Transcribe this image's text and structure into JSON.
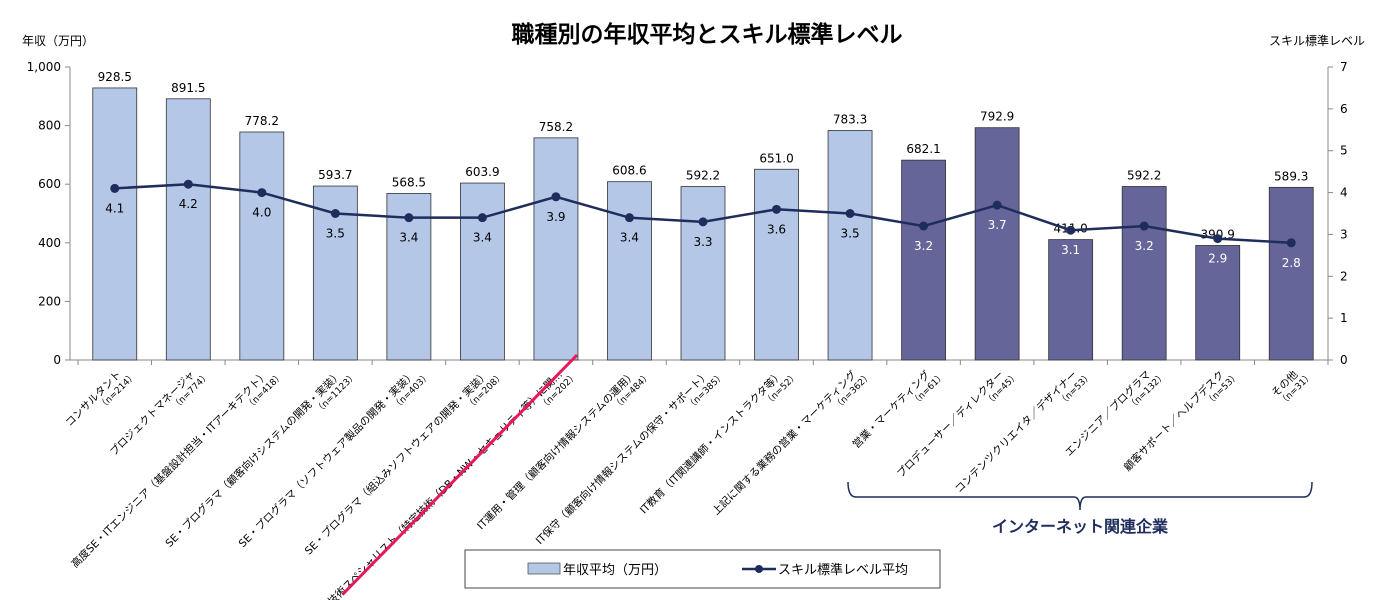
{
  "chart_data": {
    "type": "bar+line",
    "title": "職種別の年収平均とスキル標準レベル",
    "ylabel_left": "年収（万円）",
    "ylabel_right": "スキル標準レベル",
    "ylim_left": [
      0,
      1000
    ],
    "yticks_left": [
      "0",
      "200",
      "400",
      "600",
      "800",
      "1,000"
    ],
    "ylim_right": [
      0,
      7
    ],
    "yticks_right": [
      "0",
      "1",
      "2",
      "3",
      "4",
      "5",
      "6",
      "7"
    ],
    "grid": false,
    "legend_placement": "bottom",
    "colors": {
      "bar_standard": "#b4c7e7",
      "bar_internet": "#65659a",
      "line": "#1f2d5c",
      "annotation": "#e8185a"
    },
    "categories": [
      {
        "label": "コンサルタント",
        "n": "（n=214）",
        "group": "standard"
      },
      {
        "label": "プロジェクトマネージャ",
        "n": "（n=774）",
        "group": "standard"
      },
      {
        "label": "高度SE・ITエンジニア（基盤設計担当・ITアーキテクト）",
        "n": "（n=418）",
        "group": "standard"
      },
      {
        "label": "SE・プログラマ（顧客向けシステムの開発・実装）",
        "n": "（n=1123）",
        "group": "standard"
      },
      {
        "label": "SE・プログラマ（ソフトウェア製品の開発・実装）",
        "n": "（n=403）",
        "group": "standard"
      },
      {
        "label": "SE・プログラマ（組込みソフトウェアの開発・実装）",
        "n": "（n=208）",
        "group": "standard"
      },
      {
        "label": "IT技術スペシャリスト（特定技術（DB・NW・セキュリティ等）に関…",
        "n": "（n=202）",
        "group": "standard"
      },
      {
        "label": "IT運用・管理（顧客向け情報システムの運用）",
        "n": "（n=484）",
        "group": "standard"
      },
      {
        "label": "IT保守（顧客向け情報システムの保守・サポート）",
        "n": "（n=385）",
        "group": "standard"
      },
      {
        "label": "IT教育（IT関連講師・インストラクタ等）",
        "n": "（n=52）",
        "group": "standard"
      },
      {
        "label": "上記に関する業務の営業・マーケティング",
        "n": "（n=362）",
        "group": "standard"
      },
      {
        "label": "営業・マーケティング",
        "n": "（n=61）",
        "group": "internet"
      },
      {
        "label": "プロデューサー／ディレクター",
        "n": "（n=45）",
        "group": "internet"
      },
      {
        "label": "コンテンツクリエイタ／デザイナー",
        "n": "（n=53）",
        "group": "internet"
      },
      {
        "label": "エンジニア／プログラマ",
        "n": "（n=132）",
        "group": "internet"
      },
      {
        "label": "顧客サポート／ヘルプデスク",
        "n": "（n=53）",
        "group": "internet"
      },
      {
        "label": "その他",
        "n": "（n=31）",
        "group": "internet"
      }
    ],
    "series": [
      {
        "name": "年収平均（万円）",
        "type": "bar",
        "axis": "left",
        "values": [
          928.5,
          891.5,
          778.2,
          593.7,
          568.5,
          603.9,
          758.2,
          608.6,
          592.2,
          651.0,
          783.3,
          682.1,
          792.9,
          411.0,
          592.2,
          390.9,
          589.3
        ],
        "labels": [
          "928.5",
          "891.5",
          "778.2",
          "593.7",
          "568.5",
          "603.9",
          "758.2",
          "608.6",
          "592.2",
          "651.0",
          "783.3",
          "682.1",
          "792.9",
          "411.0",
          "592.2",
          "390.9",
          "589.3"
        ]
      },
      {
        "name": "スキル標準レベル平均",
        "type": "line",
        "axis": "right",
        "values": [
          4.1,
          4.2,
          4.0,
          3.5,
          3.4,
          3.4,
          3.9,
          3.4,
          3.3,
          3.6,
          3.5,
          3.2,
          3.7,
          3.1,
          3.2,
          2.9,
          2.8
        ],
        "labels": [
          "4.1",
          "4.2",
          "4.0",
          "3.5",
          "3.4",
          "3.4",
          "3.9",
          "3.4",
          "3.3",
          "3.6",
          "3.5",
          "3.2",
          "3.7",
          "3.1",
          "3.2",
          "2.9",
          "2.8"
        ]
      }
    ],
    "annotations": {
      "group_bracket_label": "インターネット関連企業"
    }
  }
}
